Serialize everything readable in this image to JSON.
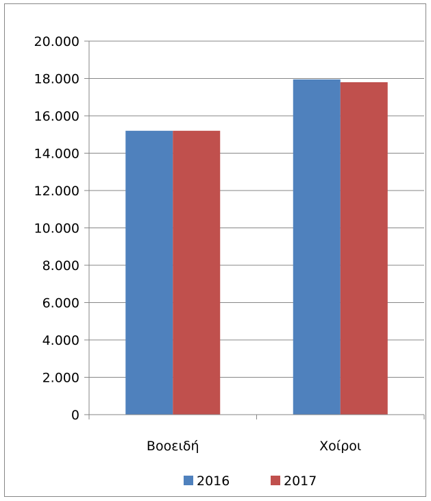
{
  "chart_data": {
    "type": "bar",
    "categories": [
      "Βοοειδή",
      "Χοίροι"
    ],
    "series": [
      {
        "name": "2016",
        "values": [
          15200,
          17950
        ],
        "color": "#4F81BD"
      },
      {
        "name": "2017",
        "values": [
          15200,
          17800
        ],
        "color": "#C0504D"
      }
    ],
    "ylim": [
      0,
      20000
    ],
    "yticks": [
      0,
      2000,
      4000,
      6000,
      8000,
      10000,
      12000,
      14000,
      16000,
      18000,
      20000
    ],
    "ytick_labels": [
      "0",
      "2.000",
      "4.000",
      "6.000",
      "8.000",
      "10.000",
      "12.000",
      "14.000",
      "16.000",
      "18.000",
      "20.000"
    ],
    "grid": true,
    "legend_position": "bottom"
  }
}
